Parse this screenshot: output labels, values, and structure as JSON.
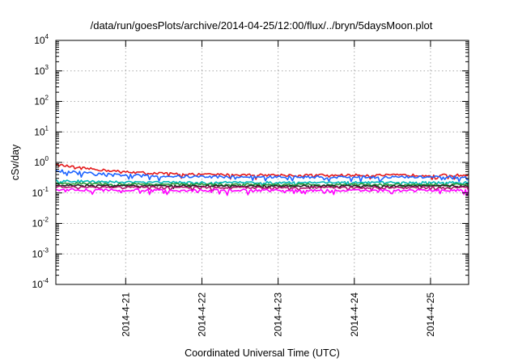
{
  "chart_data": {
    "type": "line",
    "title": "/data/run/goesPlots/archive/2014-04-25/12:00/flux/../bryn/5daysMoon.plot",
    "xlabel": "Coordinated Universal Time (UTC)",
    "ylabel": "cSv/day",
    "y_scale": "log",
    "ylim": [
      0.0001,
      10000
    ],
    "xlim": [
      "2014-04-20T02:00",
      "2014-04-25T12:00"
    ],
    "y_ticks": [
      {
        "base": "10",
        "exp": "-4"
      },
      {
        "base": "10",
        "exp": "-3"
      },
      {
        "base": "10",
        "exp": "-2"
      },
      {
        "base": "10",
        "exp": "-1"
      },
      {
        "base": "10",
        "exp": "0"
      },
      {
        "base": "10",
        "exp": "1"
      },
      {
        "base": "10",
        "exp": "2"
      },
      {
        "base": "10",
        "exp": "3"
      },
      {
        "base": "10",
        "exp": "4"
      }
    ],
    "x_ticks": [
      {
        "label": "2014-4-21",
        "date": "2014-04-21T00:00"
      },
      {
        "label": "2014-4-22",
        "date": "2014-04-22T00:00"
      },
      {
        "label": "2014-4-23",
        "date": "2014-04-23T00:00"
      },
      {
        "label": "2014-4-24",
        "date": "2014-04-24T00:00"
      },
      {
        "label": "2014-4-25",
        "date": "2014-04-25T00:00"
      }
    ],
    "grid": true,
    "series": [
      {
        "color": "#e41a1c",
        "level": 0.38,
        "start": 0.85,
        "noise": 0.09
      },
      {
        "color": "#1e64ff",
        "level": 0.33,
        "start": 0.55,
        "noise": 0.1
      },
      {
        "color": "#00b8b8",
        "level": 0.22,
        "start": 0.26,
        "noise": 0.07
      },
      {
        "color": "#2a9d3a",
        "level": 0.19,
        "start": 0.21,
        "noise": 0.07
      },
      {
        "color": "#222222",
        "level": 0.17,
        "start": 0.18,
        "noise": 0.06
      },
      {
        "color": "#b0156a",
        "level": 0.15,
        "start": 0.16,
        "noise": 0.07
      },
      {
        "color": "#ff00ff",
        "level": 0.12,
        "start": 0.13,
        "noise": 0.1
      }
    ]
  }
}
